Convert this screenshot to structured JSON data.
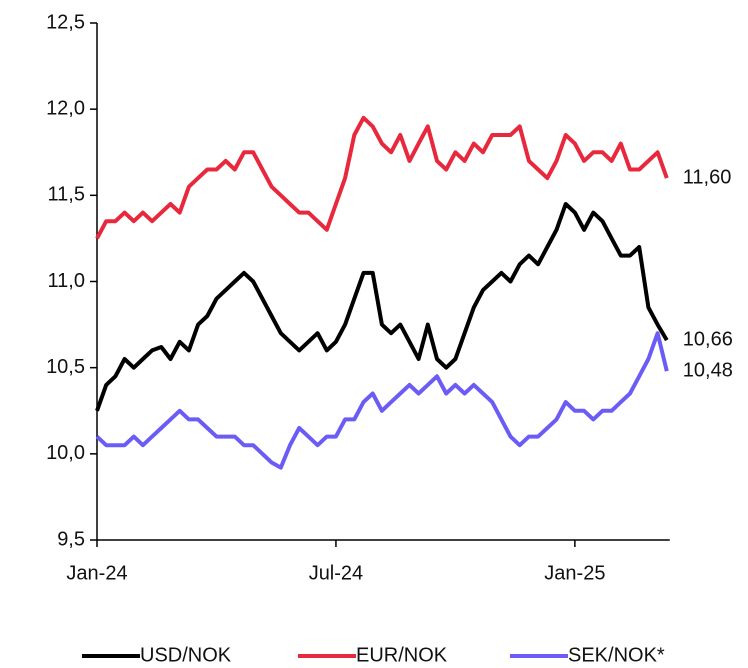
{
  "chart_data": {
    "type": "line",
    "categories": [
      "Jan-24",
      null,
      null,
      null,
      null,
      null,
      null,
      null,
      null,
      null,
      null,
      null,
      null,
      null,
      null,
      null,
      null,
      null,
      null,
      null,
      null,
      null,
      null,
      null,
      null,
      null,
      "Jul-24",
      null,
      null,
      null,
      null,
      null,
      null,
      null,
      null,
      null,
      null,
      null,
      null,
      null,
      null,
      null,
      null,
      null,
      null,
      null,
      null,
      null,
      null,
      null,
      null,
      null,
      "Jan-25",
      null,
      null,
      null,
      null,
      null,
      null,
      null,
      null,
      null,
      null
    ],
    "series": [
      {
        "name": "USD/NOK",
        "color": "#000000",
        "values": [
          10.25,
          10.4,
          10.45,
          10.55,
          10.5,
          10.55,
          10.6,
          10.62,
          10.55,
          10.65,
          10.6,
          10.75,
          10.8,
          10.9,
          10.95,
          11.0,
          11.05,
          11.0,
          10.9,
          10.8,
          10.7,
          10.65,
          10.6,
          10.65,
          10.7,
          10.6,
          10.65,
          10.75,
          10.9,
          11.05,
          11.05,
          10.75,
          10.7,
          10.75,
          10.65,
          10.55,
          10.75,
          10.55,
          10.5,
          10.55,
          10.7,
          10.85,
          10.95,
          11.0,
          11.05,
          11.0,
          11.1,
          11.15,
          11.1,
          11.2,
          11.3,
          11.45,
          11.4,
          11.3,
          11.4,
          11.35,
          11.25,
          11.15,
          11.15,
          11.2,
          10.85,
          10.75,
          10.66
        ],
        "value_labels": [
          null,
          null,
          null,
          null,
          null,
          null,
          null,
          null,
          null,
          null,
          null,
          null,
          null,
          null,
          null,
          null,
          null,
          null,
          null,
          null,
          null,
          null,
          null,
          null,
          null,
          null,
          null,
          null,
          null,
          null,
          null,
          null,
          null,
          null,
          null,
          null,
          null,
          null,
          null,
          null,
          null,
          null,
          null,
          null,
          null,
          null,
          null,
          null,
          null,
          null,
          null,
          null,
          null,
          null,
          null,
          null,
          null,
          null,
          null,
          null,
          null,
          null,
          "10,66"
        ]
      },
      {
        "name": "EUR/NOK",
        "color": "#e8283c",
        "values": [
          11.25,
          11.35,
          11.35,
          11.4,
          11.35,
          11.4,
          11.35,
          11.4,
          11.45,
          11.4,
          11.55,
          11.6,
          11.65,
          11.65,
          11.7,
          11.65,
          11.75,
          11.75,
          11.65,
          11.55,
          11.5,
          11.45,
          11.4,
          11.4,
          11.35,
          11.3,
          11.45,
          11.6,
          11.85,
          11.95,
          11.9,
          11.8,
          11.75,
          11.85,
          11.7,
          11.8,
          11.9,
          11.7,
          11.65,
          11.75,
          11.7,
          11.8,
          11.75,
          11.85,
          11.85,
          11.85,
          11.9,
          11.7,
          11.65,
          11.6,
          11.7,
          11.85,
          11.8,
          11.7,
          11.75,
          11.75,
          11.7,
          11.8,
          11.65,
          11.65,
          11.7,
          11.75,
          11.6
        ],
        "value_labels": [
          null,
          null,
          null,
          null,
          null,
          null,
          null,
          null,
          null,
          null,
          null,
          null,
          null,
          null,
          null,
          null,
          null,
          null,
          null,
          null,
          null,
          null,
          null,
          null,
          null,
          null,
          null,
          null,
          null,
          null,
          null,
          null,
          null,
          null,
          null,
          null,
          null,
          null,
          null,
          null,
          null,
          null,
          null,
          null,
          null,
          null,
          null,
          null,
          null,
          null,
          null,
          null,
          null,
          null,
          null,
          null,
          null,
          null,
          null,
          null,
          null,
          null,
          "11,60"
        ]
      },
      {
        "name": "SEK/NOK*",
        "color": "#6b5cf5",
        "values": [
          10.1,
          10.05,
          10.05,
          10.05,
          10.1,
          10.05,
          10.1,
          10.15,
          10.2,
          10.25,
          10.2,
          10.2,
          10.15,
          10.1,
          10.1,
          10.1,
          10.05,
          10.05,
          10.0,
          9.95,
          9.92,
          10.05,
          10.15,
          10.1,
          10.05,
          10.1,
          10.1,
          10.2,
          10.2,
          10.3,
          10.35,
          10.25,
          10.3,
          10.35,
          10.4,
          10.35,
          10.4,
          10.45,
          10.35,
          10.4,
          10.35,
          10.4,
          10.35,
          10.3,
          10.2,
          10.1,
          10.05,
          10.1,
          10.1,
          10.15,
          10.2,
          10.3,
          10.25,
          10.25,
          10.2,
          10.25,
          10.25,
          10.3,
          10.35,
          10.45,
          10.55,
          10.7,
          10.48
        ],
        "value_labels": [
          null,
          null,
          null,
          null,
          null,
          null,
          null,
          null,
          null,
          null,
          null,
          null,
          null,
          null,
          null,
          null,
          null,
          null,
          null,
          null,
          null,
          null,
          null,
          null,
          null,
          null,
          null,
          null,
          null,
          null,
          null,
          null,
          null,
          null,
          null,
          null,
          null,
          null,
          null,
          null,
          null,
          null,
          null,
          null,
          null,
          null,
          null,
          null,
          null,
          null,
          null,
          null,
          null,
          null,
          null,
          null,
          null,
          null,
          null,
          null,
          null,
          null,
          "10,48"
        ]
      }
    ],
    "ylim": [
      9.5,
      12.5
    ],
    "yticks": [
      {
        "value": 9.5,
        "label": "9,5"
      },
      {
        "value": 10.0,
        "label": "10,0"
      },
      {
        "value": 10.5,
        "label": "10,5"
      },
      {
        "value": 11.0,
        "label": "11,0"
      },
      {
        "value": 11.5,
        "label": "11,5"
      },
      {
        "value": 12.0,
        "label": "12,0"
      },
      {
        "value": 12.5,
        "label": "12,5"
      }
    ],
    "legend": "bottom"
  }
}
